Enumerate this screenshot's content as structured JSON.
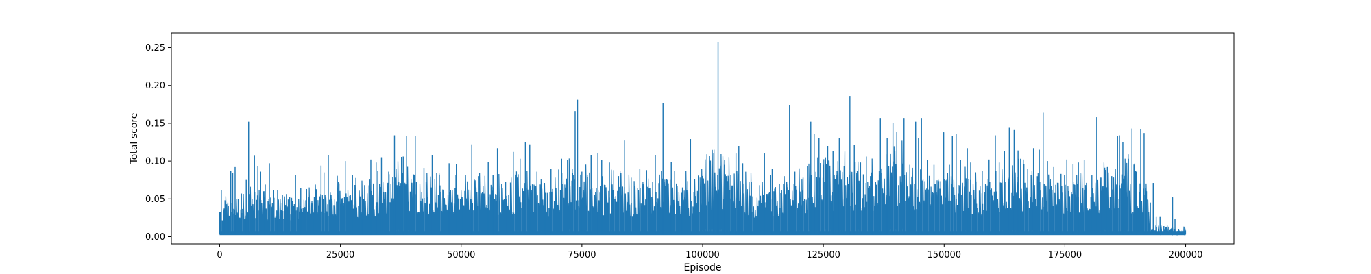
{
  "chart_data": {
    "type": "line",
    "title": "",
    "xlabel": "Episode",
    "ylabel": "Total score",
    "xlim": [
      -10000,
      210000
    ],
    "ylim": [
      -0.0095,
      0.2695
    ],
    "xticks": [
      0,
      25000,
      50000,
      75000,
      100000,
      125000,
      150000,
      175000,
      200000
    ],
    "yticks": [
      0.0,
      0.05,
      0.1,
      0.15,
      0.2,
      0.25
    ],
    "ytick_labels": [
      "0.00",
      "0.05",
      "0.10",
      "0.15",
      "0.20",
      "0.25"
    ],
    "grid": false,
    "series": [
      {
        "color": "#1f77b4",
        "x_range": [
          0,
          200000
        ],
        "baseline": 0.003,
        "peaks": [
          [
            100,
            0.024
          ],
          [
            350,
            0.062
          ],
          [
            900,
            0.022
          ],
          [
            1700,
            0.045
          ],
          [
            2300,
            0.087
          ],
          [
            2700,
            0.084
          ],
          [
            3200,
            0.092
          ],
          [
            4500,
            0.057
          ],
          [
            5500,
            0.075
          ],
          [
            6000,
            0.152
          ],
          [
            6700,
            0.046
          ],
          [
            7200,
            0.107
          ],
          [
            7900,
            0.093
          ],
          [
            8500,
            0.086
          ],
          [
            9300,
            0.06
          ],
          [
            10300,
            0.097
          ],
          [
            11100,
            0.062
          ],
          [
            12000,
            0.062
          ],
          [
            13000,
            0.055
          ],
          [
            14500,
            0.052
          ],
          [
            15700,
            0.082
          ],
          [
            16800,
            0.064
          ],
          [
            18000,
            0.063
          ],
          [
            19600,
            0.053
          ],
          [
            21000,
            0.094
          ],
          [
            21600,
            0.085
          ],
          [
            22500,
            0.108
          ],
          [
            24600,
            0.072
          ],
          [
            26000,
            0.1
          ],
          [
            27500,
            0.082
          ],
          [
            29500,
            0.055
          ],
          [
            31300,
            0.102
          ],
          [
            32400,
            0.098
          ],
          [
            33500,
            0.105
          ],
          [
            35000,
            0.086
          ],
          [
            36200,
            0.134
          ],
          [
            38000,
            0.106
          ],
          [
            38700,
            0.133
          ],
          [
            40500,
            0.133
          ],
          [
            42300,
            0.091
          ],
          [
            44000,
            0.108
          ],
          [
            45500,
            0.082
          ],
          [
            47500,
            0.097
          ],
          [
            49000,
            0.096
          ],
          [
            50200,
            0.052
          ],
          [
            52200,
            0.122
          ],
          [
            53600,
            0.08
          ],
          [
            55600,
            0.099
          ],
          [
            56600,
            0.082
          ],
          [
            57500,
            0.117
          ],
          [
            59200,
            0.072
          ],
          [
            60800,
            0.112
          ],
          [
            62200,
            0.103
          ],
          [
            63300,
            0.125
          ],
          [
            64200,
            0.122
          ],
          [
            65700,
            0.086
          ],
          [
            67400,
            0.058
          ],
          [
            68600,
            0.09
          ],
          [
            70800,
            0.103
          ],
          [
            73000,
            0.09
          ],
          [
            73600,
            0.166
          ],
          [
            74100,
            0.181
          ],
          [
            75000,
            0.086
          ],
          [
            76100,
            0.082
          ],
          [
            76900,
            0.108
          ],
          [
            78300,
            0.111
          ],
          [
            79100,
            0.101
          ],
          [
            80700,
            0.098
          ],
          [
            81600,
            0.088
          ],
          [
            82600,
            0.08
          ],
          [
            83800,
            0.127
          ],
          [
            85200,
            0.078
          ],
          [
            87000,
            0.09
          ],
          [
            88400,
            0.088
          ],
          [
            90200,
            0.108
          ],
          [
            91800,
            0.177
          ],
          [
            93500,
            0.099
          ],
          [
            94200,
            0.087
          ],
          [
            95700,
            0.058
          ],
          [
            97500,
            0.129
          ],
          [
            99100,
            0.078
          ],
          [
            100900,
            0.109
          ],
          [
            102300,
            0.11
          ],
          [
            103200,
            0.257
          ],
          [
            104500,
            0.095
          ],
          [
            105600,
            0.062
          ],
          [
            106900,
            0.11
          ],
          [
            107500,
            0.12
          ],
          [
            108300,
            0.097
          ],
          [
            110100,
            0.072
          ],
          [
            111800,
            0.068
          ],
          [
            112800,
            0.11
          ],
          [
            114400,
            0.09
          ],
          [
            115900,
            0.07
          ],
          [
            117400,
            0.072
          ],
          [
            118000,
            0.174
          ],
          [
            119100,
            0.086
          ],
          [
            120800,
            0.078
          ],
          [
            121700,
            0.093
          ],
          [
            122400,
            0.152
          ],
          [
            123100,
            0.136
          ],
          [
            124100,
            0.13
          ],
          [
            125000,
            0.095
          ],
          [
            125900,
            0.12
          ],
          [
            127000,
            0.113
          ],
          [
            128300,
            0.13
          ],
          [
            129300,
            0.093
          ],
          [
            130500,
            0.186
          ],
          [
            131400,
            0.121
          ],
          [
            132700,
            0.098
          ],
          [
            133900,
            0.106
          ],
          [
            135100,
            0.074
          ],
          [
            136800,
            0.157
          ],
          [
            138200,
            0.13
          ],
          [
            139400,
            0.15
          ],
          [
            140200,
            0.139
          ],
          [
            141700,
            0.157
          ],
          [
            142900,
            0.095
          ],
          [
            144100,
            0.152
          ],
          [
            144700,
            0.13
          ],
          [
            145300,
            0.157
          ],
          [
            146600,
            0.101
          ],
          [
            147900,
            0.095
          ],
          [
            148800,
            0.075
          ],
          [
            149900,
            0.138
          ],
          [
            151100,
            0.095
          ],
          [
            151700,
            0.133
          ],
          [
            152500,
            0.136
          ],
          [
            153400,
            0.101
          ],
          [
            154800,
            0.117
          ],
          [
            155500,
            0.098
          ],
          [
            156600,
            0.073
          ],
          [
            157900,
            0.087
          ],
          [
            159300,
            0.102
          ],
          [
            160600,
            0.134
          ],
          [
            161400,
            0.098
          ],
          [
            162500,
            0.113
          ],
          [
            163500,
            0.144
          ],
          [
            164500,
            0.141
          ],
          [
            165300,
            0.114
          ],
          [
            166400,
            0.102
          ],
          [
            167300,
            0.09
          ],
          [
            168500,
            0.117
          ],
          [
            169700,
            0.115
          ],
          [
            170500,
            0.164
          ],
          [
            171400,
            0.1
          ],
          [
            172700,
            0.092
          ],
          [
            174200,
            0.083
          ],
          [
            175400,
            0.102
          ],
          [
            176700,
            0.096
          ],
          [
            177800,
            0.098
          ],
          [
            179000,
            0.101
          ],
          [
            180600,
            0.081
          ],
          [
            181600,
            0.158
          ],
          [
            182600,
            0.078
          ],
          [
            183800,
            0.092
          ],
          [
            184700,
            0.08
          ],
          [
            185900,
            0.133
          ],
          [
            186300,
            0.134
          ],
          [
            187000,
            0.125
          ],
          [
            188100,
            0.109
          ],
          [
            188900,
            0.143
          ],
          [
            189800,
            0.086
          ],
          [
            190700,
            0.142
          ],
          [
            191400,
            0.137
          ],
          [
            191900,
            0.06
          ],
          [
            192700,
            0.045
          ],
          [
            193300,
            0.071
          ],
          [
            193900,
            0.026
          ],
          [
            194700,
            0.026
          ],
          [
            195500,
            0.014
          ],
          [
            196500,
            0.013
          ],
          [
            197300,
            0.052
          ],
          [
            197800,
            0.024
          ],
          [
            198800,
            0.008
          ],
          [
            199600,
            0.007
          ]
        ]
      }
    ]
  }
}
